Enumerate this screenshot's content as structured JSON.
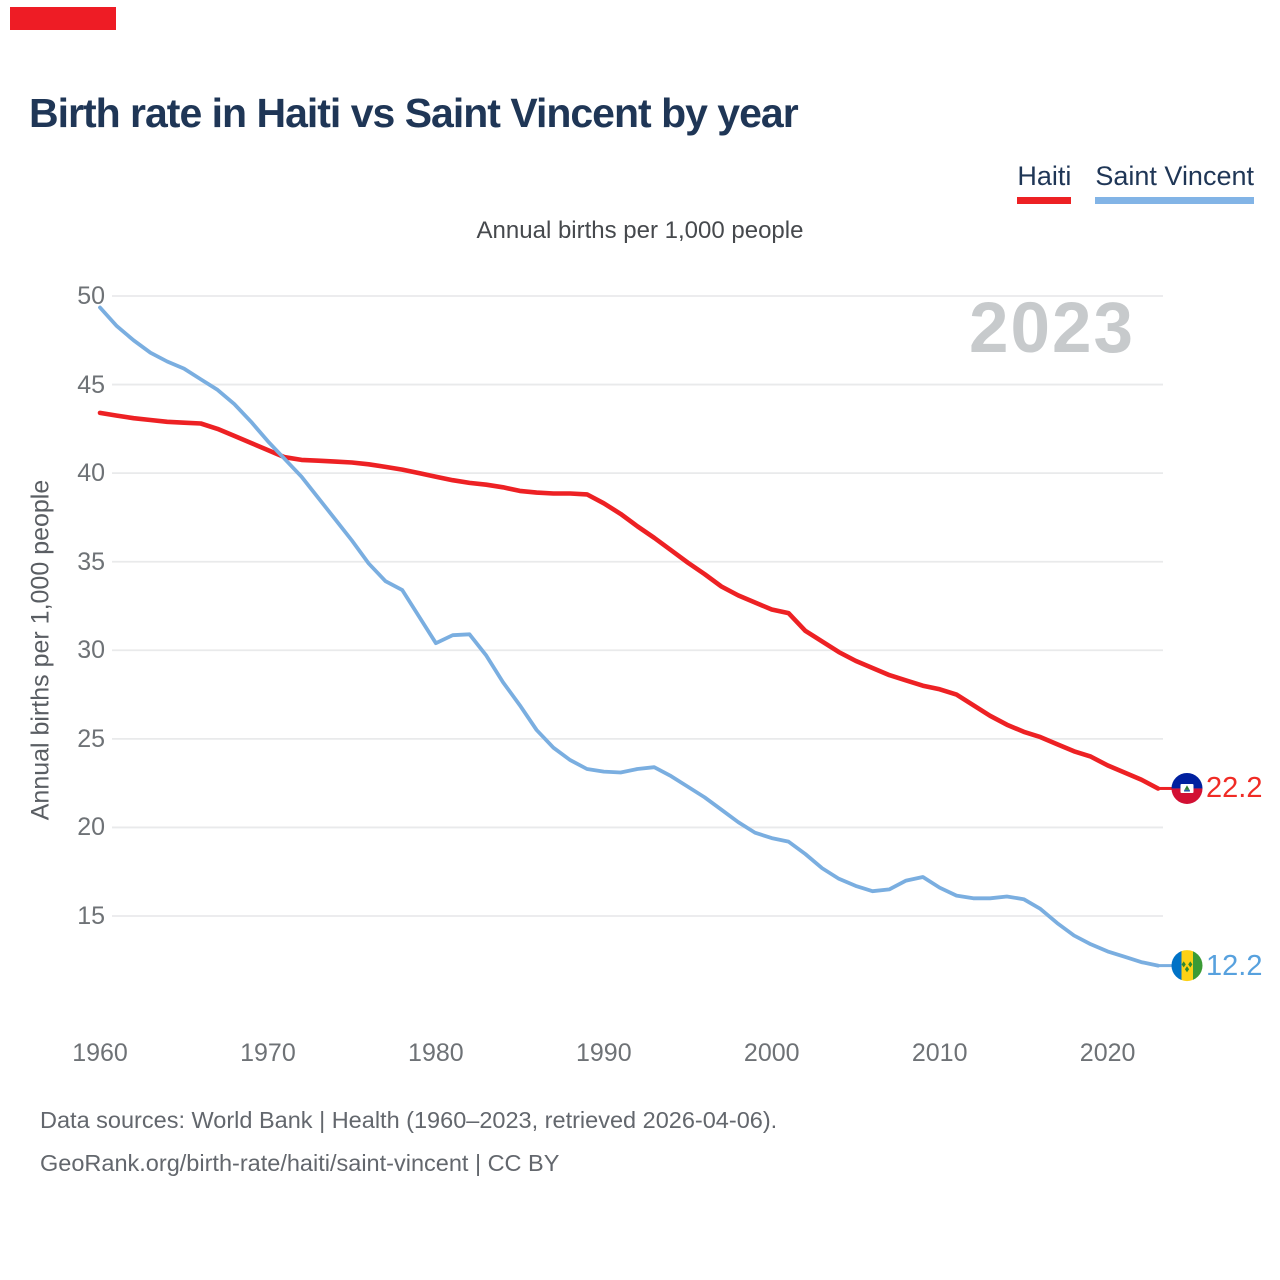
{
  "page": {
    "marker_color": "#EE1C25",
    "background": "#ffffff"
  },
  "header": {
    "title": "Birth rate in Haiti vs Saint Vincent by year"
  },
  "legend": [
    {
      "label": "Haiti",
      "color": "#ED2124"
    },
    {
      "label": "Saint Vincent",
      "color": "#82B4E6"
    }
  ],
  "subtitle": "Annual births per 1,000 people",
  "watermark": "2023",
  "chart_data": {
    "type": "line",
    "title": "Birth rate in Haiti vs Saint Vincent by year",
    "xlabel": "",
    "ylabel": "Annual births per 1,000 people",
    "grid": true,
    "legend_position": "top-right",
    "ylim": [
      11.5,
      50.5
    ],
    "y_ticks": [
      50,
      45,
      40,
      35,
      30,
      25,
      20,
      15
    ],
    "x_ticks": [
      1960,
      1970,
      1980,
      1990,
      2000,
      2010,
      2020
    ],
    "x": [
      1960,
      1961,
      1962,
      1963,
      1964,
      1965,
      1966,
      1967,
      1968,
      1969,
      1970,
      1971,
      1972,
      1973,
      1974,
      1975,
      1976,
      1977,
      1978,
      1979,
      1980,
      1981,
      1982,
      1983,
      1984,
      1985,
      1986,
      1987,
      1988,
      1989,
      1990,
      1991,
      1992,
      1993,
      1994,
      1995,
      1996,
      1997,
      1998,
      1999,
      2000,
      2001,
      2002,
      2003,
      2004,
      2005,
      2006,
      2007,
      2008,
      2009,
      2010,
      2011,
      2012,
      2013,
      2014,
      2015,
      2016,
      2017,
      2018,
      2019,
      2020,
      2021,
      2022,
      2023
    ],
    "series": [
      {
        "name": "Haiti",
        "color": "#ED2124",
        "stroke_width": 4.6,
        "values": [
          43.4,
          43.25,
          43.1,
          43.0,
          42.9,
          42.85,
          42.8,
          42.5,
          42.1,
          41.7,
          41.3,
          40.9,
          40.75,
          40.7,
          40.65,
          40.6,
          40.5,
          40.35,
          40.2,
          40.0,
          39.8,
          39.6,
          39.45,
          39.35,
          39.2,
          39.0,
          38.9,
          38.85,
          38.85,
          38.8,
          38.3,
          37.7,
          37.0,
          36.35,
          35.65,
          34.95,
          34.3,
          33.6,
          33.1,
          32.7,
          32.3,
          32.1,
          31.1,
          30.5,
          29.9,
          29.4,
          29.0,
          28.6,
          28.3,
          28.0,
          27.8,
          27.5,
          26.9,
          26.3,
          25.8,
          25.4,
          25.1,
          24.7,
          24.3,
          24.0,
          23.5,
          23.1,
          22.7,
          22.2
        ]
      },
      {
        "name": "Saint Vincent",
        "color": "#7AAEE0",
        "stroke_width": 3.8,
        "values": [
          49.35,
          48.3,
          47.5,
          46.8,
          46.3,
          45.9,
          45.3,
          44.7,
          43.9,
          42.9,
          41.8,
          40.8,
          39.8,
          38.6,
          37.4,
          36.2,
          34.9,
          33.9,
          33.4,
          31.9,
          30.4,
          30.85,
          30.9,
          29.7,
          28.2,
          26.9,
          25.5,
          24.5,
          23.8,
          23.3,
          23.15,
          23.1,
          23.3,
          23.4,
          22.9,
          22.3,
          21.7,
          21.0,
          20.3,
          19.7,
          19.4,
          19.2,
          18.5,
          17.7,
          17.1,
          16.7,
          16.4,
          16.5,
          17.0,
          17.2,
          16.6,
          16.15,
          16.0,
          16.0,
          16.1,
          15.95,
          15.4,
          14.6,
          13.9,
          13.4,
          13.0,
          12.7,
          12.4,
          12.2
        ]
      }
    ],
    "end_labels": [
      {
        "series": "Haiti",
        "value": "22.2",
        "color": "#F02B25"
      },
      {
        "series": "Saint Vincent",
        "value": "12.2",
        "color": "#57A1DE"
      }
    ]
  },
  "flags": {
    "haiti": {
      "blue": "#00209F",
      "red": "#D21034",
      "panel": "#FFFFFF"
    },
    "saint_vincent": {
      "blue": "#0072C6",
      "yellow": "#FCD116",
      "green": "#3B9B35",
      "diamond": "#2F8A2F"
    }
  },
  "footer": {
    "line1": "Data sources: World Bank | Health (1960–2023, retrieved 2026-04-06).",
    "line2": "GeoRank.org/birth-rate/haiti/saint-vincent | CC BY"
  }
}
